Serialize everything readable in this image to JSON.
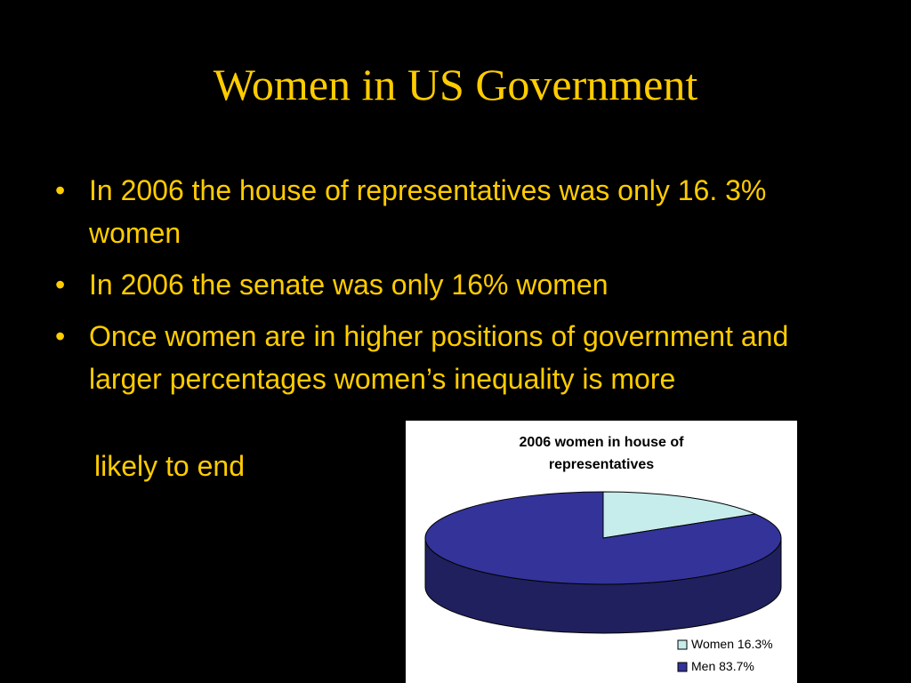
{
  "title": "Women in US Government",
  "bullets": [
    "In 2006 the house of representatives was only 16. 3% women",
    "In 2006 the senate was only 16% women",
    "Once women are in higher positions of government and larger percentages women’s inequality is more"
  ],
  "continuation": "likely to end",
  "chart_data": {
    "type": "pie",
    "title": "2006 women in house of representatives",
    "categories": [
      "Women",
      "Men"
    ],
    "values": [
      16.3,
      83.7
    ],
    "value_labels": [
      "16.3%",
      "83.7%"
    ],
    "colors": [
      "#c6ecec",
      "#333399"
    ],
    "side_colors": [
      "#8fb5b5",
      "#20205e"
    ],
    "legend": "bottom-right",
    "three_d": true
  }
}
